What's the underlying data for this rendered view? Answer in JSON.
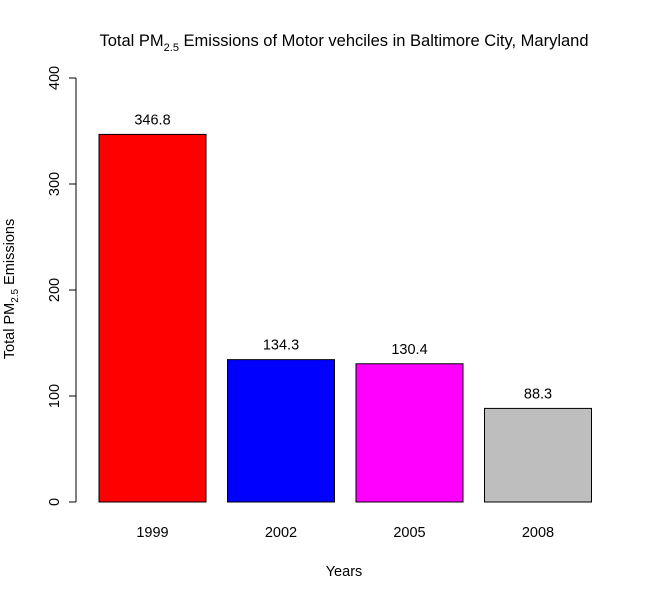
{
  "chart_data": {
    "type": "bar",
    "title_main": "Total PM",
    "title_sub": "2.5",
    "title_rest": " Emissions of Motor vehciles in Baltimore City, Maryland",
    "xlabel": "Years",
    "ylabel_main": "Total PM",
    "ylabel_sub": "2.5",
    "ylabel_rest": " Emissions",
    "categories": [
      "1999",
      "2002",
      "2005",
      "2008"
    ],
    "values": [
      346.8,
      134.3,
      130.4,
      88.3
    ],
    "value_labels": [
      "346.8",
      "134.3",
      "130.4",
      "88.3"
    ],
    "colors": [
      "#ff0000",
      "#0000ff",
      "#ff00ff",
      "#bebebe"
    ],
    "ylim": [
      0,
      400
    ],
    "yticks": [
      0,
      100,
      200,
      300,
      400
    ],
    "ytick_labels": [
      "0",
      "100",
      "200",
      "300",
      "400"
    ],
    "grid": false,
    "legend": "none"
  }
}
